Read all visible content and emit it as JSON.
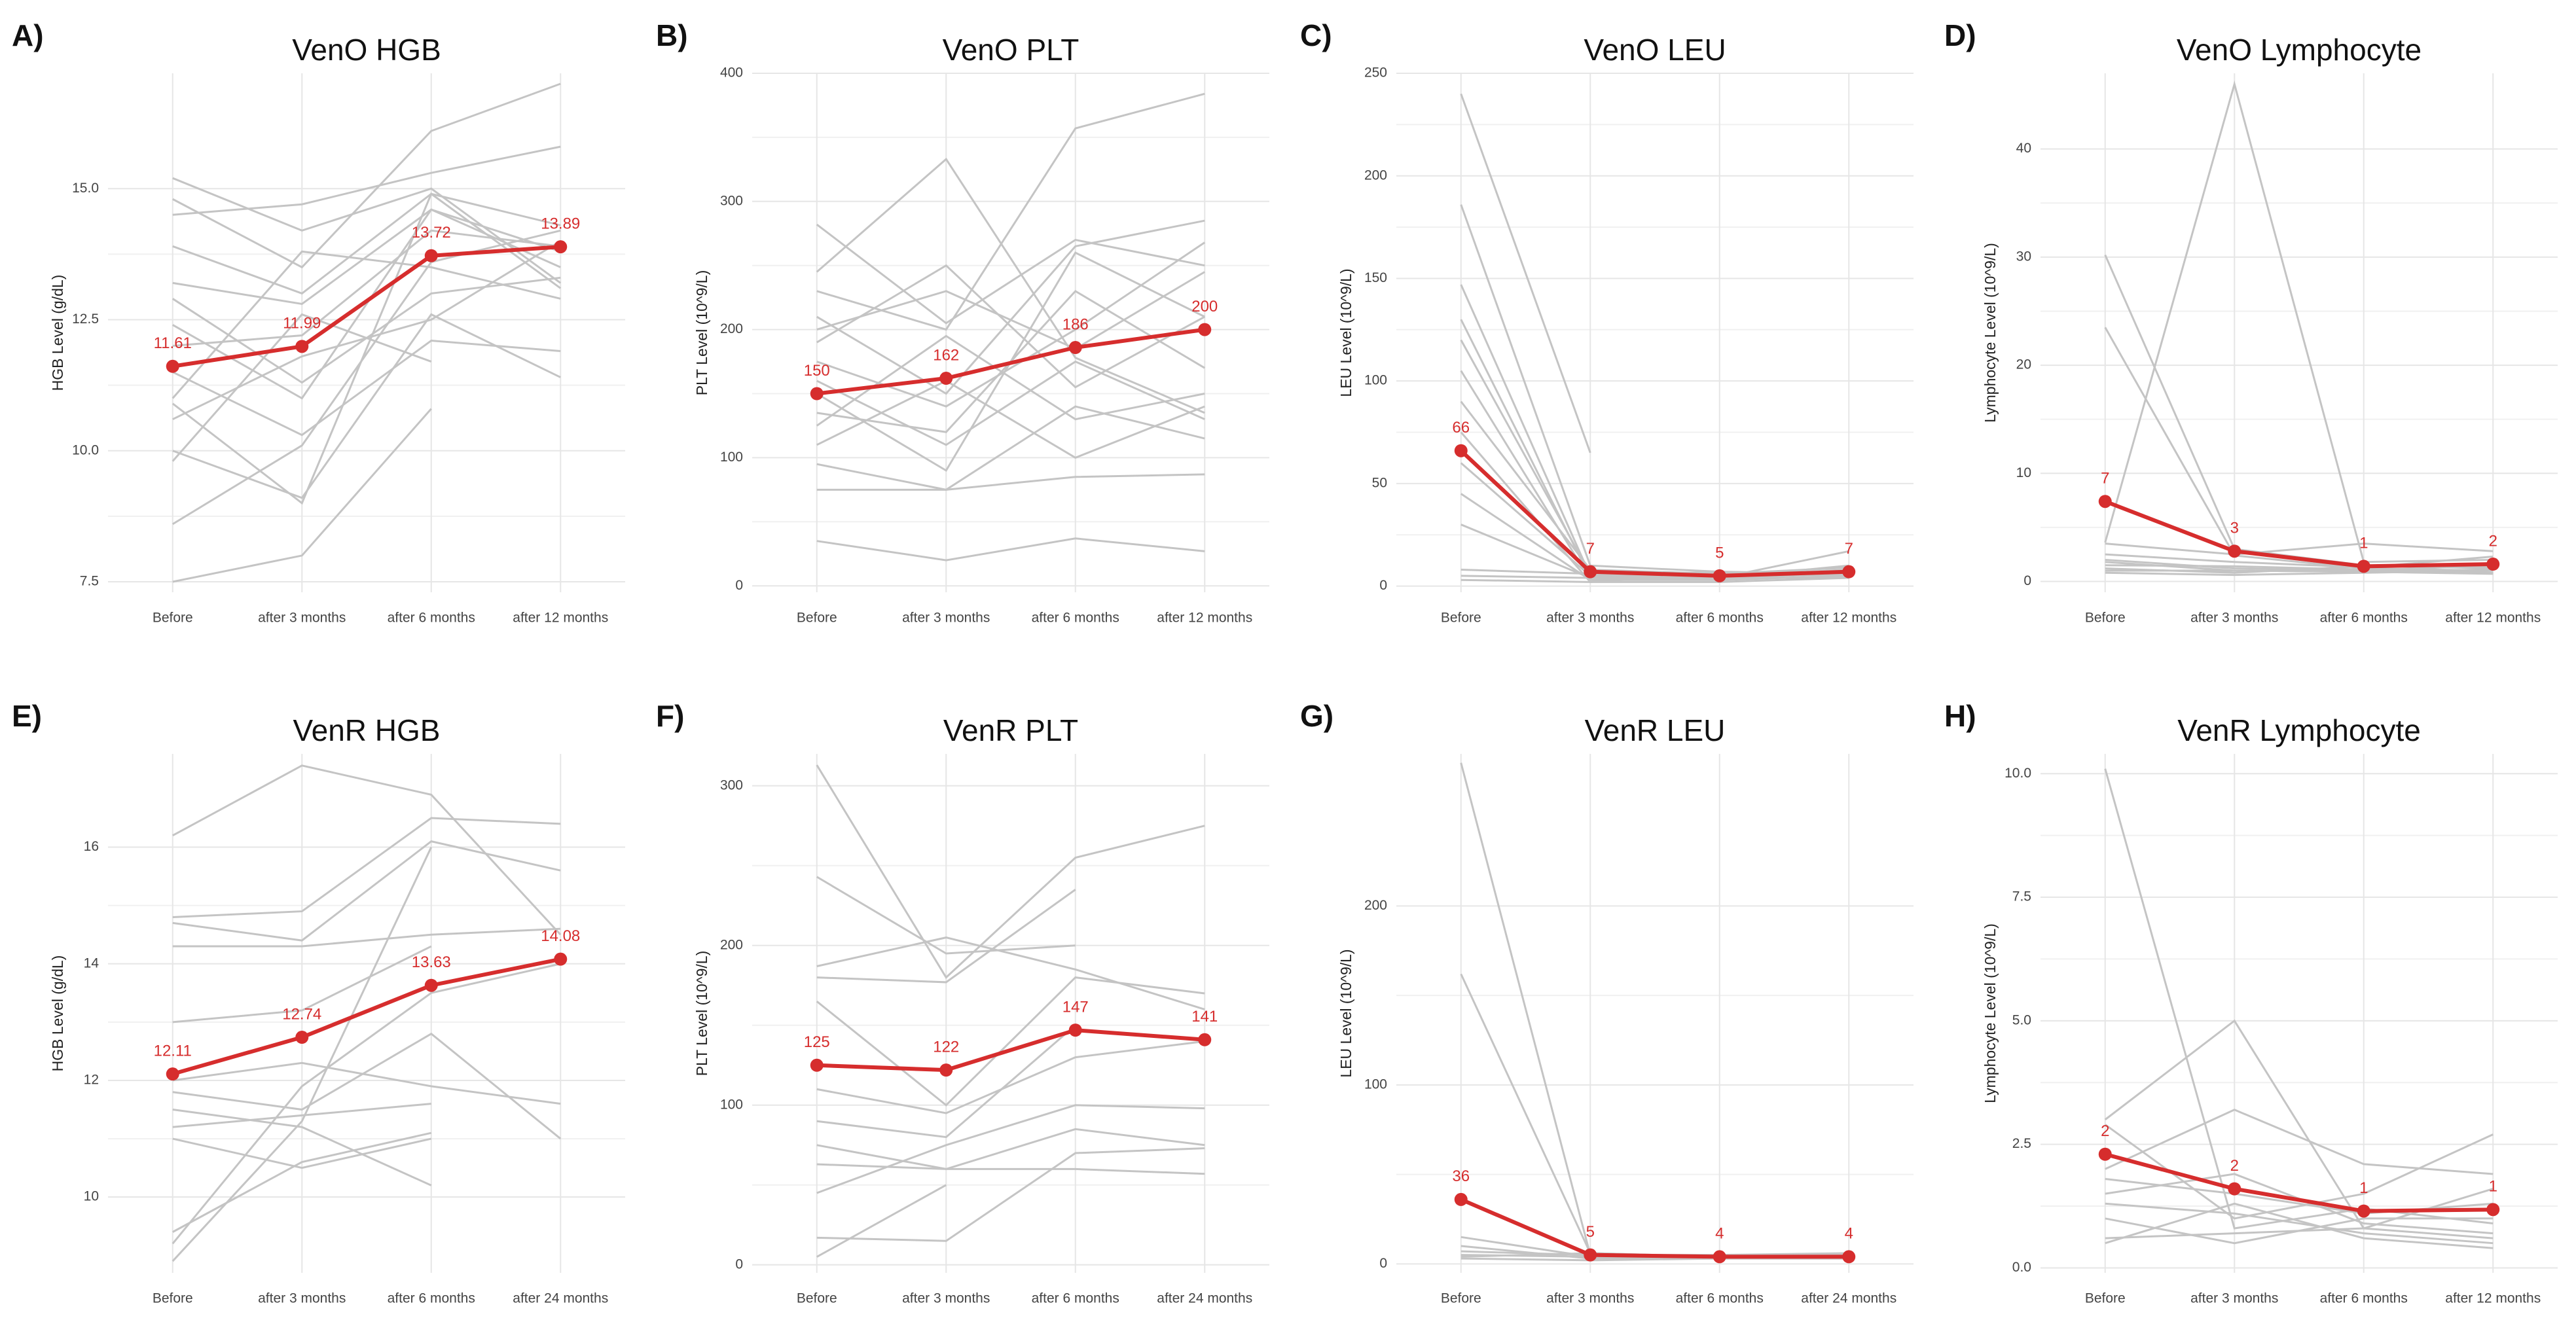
{
  "chart_data": [
    {
      "type": "line",
      "panel": "A)",
      "title": "VenO HGB",
      "y_label": "HGB Level (g/dL)",
      "categories": [
        "Before",
        "after 3 months",
        "after 6 months",
        "after 12 months"
      ],
      "ylim": [
        7.3,
        17.2
      ],
      "yticks": [
        7.5,
        {
          "value": 10,
          "label": "10.0"
        },
        12.5,
        {
          "value": 15,
          "label": "15.0"
        }
      ],
      "grid": true,
      "line_color": "#c4c4c4",
      "series": [
        {
          "values": [
            15.2,
            14.2,
            15.0,
            13.2
          ]
        },
        {
          "values": [
            14.8,
            13.5,
            16.1,
            17.0
          ]
        },
        {
          "values": [
            14.5,
            14.7,
            15.3,
            15.8
          ]
        },
        {
          "values": [
            13.9,
            13.0,
            14.9,
            14.3
          ]
        },
        {
          "values": [
            13.2,
            12.8,
            14.6,
            13.5
          ]
        },
        {
          "values": [
            12.9,
            11.3,
            13.0,
            13.3
          ]
        },
        {
          "values": [
            12.0,
            12.2,
            14.2,
            13.9
          ]
        },
        {
          "values": [
            11.5,
            10.3,
            12.1,
            11.9
          ]
        },
        {
          "values": [
            10.9,
            9.0,
            14.9,
            13.1
          ]
        },
        {
          "values": [
            10.6,
            11.8,
            12.5,
            14.0
          ]
        },
        {
          "values": [
            10.0,
            9.1,
            12.6,
            11.4
          ]
        },
        {
          "values": [
            9.8,
            12.6,
            11.7,
            null
          ]
        },
        {
          "values": [
            8.6,
            10.1,
            13.6,
            14.2
          ]
        },
        {
          "values": [
            7.5,
            8.0,
            10.8,
            null
          ]
        },
        {
          "values": [
            11.0,
            13.8,
            13.5,
            12.9
          ]
        },
        {
          "values": [
            12.4,
            11.0,
            14.6,
            13.8
          ]
        }
      ],
      "mean": {
        "color": "#d62d2d",
        "values": [
          11.61,
          11.99,
          13.72,
          13.89
        ]
      }
    },
    {
      "type": "line",
      "panel": "B)",
      "title": "VenO PLT",
      "y_label": "PLT Level (10^9/L)",
      "categories": [
        "Before",
        "after 3 months",
        "after 6 months",
        "after 12 months"
      ],
      "ylim": [
        -5,
        400
      ],
      "yticks": [
        0,
        100,
        200,
        300,
        400
      ],
      "grid": true,
      "line_color": "#c4c4c4",
      "series": [
        {
          "values": [
            282,
            205,
            270,
            250
          ]
        },
        {
          "values": [
            245,
            333,
            178,
            135
          ]
        },
        {
          "values": [
            230,
            200,
            357,
            384
          ]
        },
        {
          "values": [
            210,
            150,
            265,
            285
          ]
        },
        {
          "values": [
            190,
            250,
            155,
            210
          ]
        },
        {
          "values": [
            175,
            140,
            200,
            268
          ]
        },
        {
          "values": [
            150,
            90,
            260,
            210
          ]
        },
        {
          "values": [
            135,
            120,
            230,
            170
          ]
        },
        {
          "values": [
            125,
            195,
            130,
            150
          ]
        },
        {
          "values": [
            110,
            160,
            100,
            140
          ]
        },
        {
          "values": [
            95,
            75,
            140,
            115
          ]
        },
        {
          "values": [
            75,
            75,
            85,
            87
          ]
        },
        {
          "values": [
            35,
            20,
            37,
            27
          ]
        },
        {
          "values": [
            200,
            230,
            185,
            245
          ]
        },
        {
          "values": [
            160,
            110,
            175,
            130
          ]
        }
      ],
      "mean": {
        "color": "#d62d2d",
        "values": [
          150,
          162,
          186,
          200
        ]
      }
    },
    {
      "type": "line",
      "panel": "C)",
      "title": "VenO LEU",
      "y_label": "LEU Level (10^9/L)",
      "categories": [
        "Before",
        "after 3 months",
        "after 6 months",
        "after 12 months"
      ],
      "ylim": [
        -3,
        250
      ],
      "yticks": [
        0,
        50,
        100,
        150,
        200,
        250
      ],
      "grid": true,
      "line_color": "#c4c4c4",
      "series": [
        {
          "values": [
            240,
            65,
            null,
            null
          ]
        },
        {
          "values": [
            186,
            10,
            7,
            5
          ]
        },
        {
          "values": [
            147,
            5,
            4,
            6
          ]
        },
        {
          "values": [
            130,
            4,
            5,
            8
          ]
        },
        {
          "values": [
            120,
            6,
            4,
            17
          ]
        },
        {
          "values": [
            105,
            3,
            3,
            5
          ]
        },
        {
          "values": [
            90,
            8,
            6,
            9
          ]
        },
        {
          "values": [
            75,
            2,
            2,
            4
          ]
        },
        {
          "values": [
            60,
            5,
            7,
            6
          ]
        },
        {
          "values": [
            45,
            3,
            4,
            10
          ]
        },
        {
          "values": [
            30,
            4,
            5,
            6
          ]
        },
        {
          "values": [
            8,
            6,
            3,
            5
          ]
        },
        {
          "values": [
            5,
            4,
            4,
            4
          ]
        },
        {
          "values": [
            3,
            2,
            6,
            7
          ]
        }
      ],
      "mean": {
        "color": "#d62d2d",
        "values": [
          66,
          7,
          5,
          7
        ]
      }
    },
    {
      "type": "line",
      "panel": "D)",
      "title": "VenO Lymphocyte",
      "y_label": "Lymphocyte Level (10^9/L)",
      "categories": [
        "Before",
        "after 3 months",
        "after 6 months",
        "after 12 months"
      ],
      "ylim": [
        -1,
        47
      ],
      "yticks": [
        0,
        10,
        20,
        30,
        40
      ],
      "grid": true,
      "line_color": "#c4c4c4",
      "series": [
        {
          "values": [
            30.2,
            3,
            1.5,
            1.2
          ]
        },
        {
          "values": [
            23.5,
            2.4,
            1.2,
            1
          ]
        },
        {
          "values": [
            3.6,
            46,
            1.8,
            2
          ]
        },
        {
          "values": [
            3.5,
            2.5,
            3.5,
            2.8
          ]
        },
        {
          "values": [
            2.5,
            1.8,
            1.3,
            2.3
          ]
        },
        {
          "values": [
            2,
            1.2,
            1,
            1.5
          ]
        },
        {
          "values": [
            1.8,
            1,
            0.9,
            1.1
          ]
        },
        {
          "values": [
            1.5,
            1.4,
            1.1,
            0.8
          ]
        },
        {
          "values": [
            1.2,
            0.8,
            1.4,
            1.3
          ]
        },
        {
          "values": [
            1,
            1,
            0.9,
            0.7
          ]
        },
        {
          "values": [
            0.8,
            0.6,
            0.8,
            1.0
          ]
        }
      ],
      "mean": {
        "color": "#d62d2d",
        "values": [
          7.4,
          2.8,
          1.4,
          1.6
        ],
        "value_labels": [
          "7",
          "3",
          "1",
          "2"
        ]
      }
    },
    {
      "type": "line",
      "panel": "E)",
      "title": "VenR HGB",
      "y_label": "HGB Level (g/dL)",
      "categories": [
        "Before",
        "after 3 months",
        "after 6 months",
        "after 24 months"
      ],
      "ylim": [
        8.7,
        17.6
      ],
      "yticks": [
        10,
        12,
        14,
        16
      ],
      "grid": true,
      "line_color": "#c4c4c4",
      "series": [
        {
          "values": [
            16.2,
            17.4,
            16.9,
            14.5
          ]
        },
        {
          "values": [
            14.8,
            14.9,
            16.5,
            16.4
          ]
        },
        {
          "values": [
            14.7,
            14.4,
            16.1,
            15.6
          ]
        },
        {
          "values": [
            14.3,
            14.3,
            14.5,
            14.6
          ]
        },
        {
          "values": [
            13.0,
            13.2,
            14.3,
            null
          ]
        },
        {
          "values": [
            12.0,
            12.3,
            11.9,
            11.6
          ]
        },
        {
          "values": [
            11.8,
            11.5,
            12.8,
            11.0
          ]
        },
        {
          "values": [
            11.5,
            11.2,
            10.2,
            null
          ]
        },
        {
          "values": [
            11.2,
            11.4,
            11.6,
            null
          ]
        },
        {
          "values": [
            11.0,
            10.5,
            11.0,
            null
          ]
        },
        {
          "values": [
            9.4,
            10.6,
            11.1,
            null
          ]
        },
        {
          "values": [
            9.2,
            11.9,
            13.5,
            14.0
          ]
        },
        {
          "values": [
            8.9,
            11.3,
            16.0,
            null
          ]
        }
      ],
      "mean": {
        "color": "#d62d2d",
        "values": [
          12.11,
          12.74,
          13.63,
          14.08
        ]
      }
    },
    {
      "type": "line",
      "panel": "F)",
      "title": "VenR PLT",
      "y_label": "PLT Level (10^9/L)",
      "categories": [
        "Before",
        "after 3 months",
        "after 6 months",
        "after 24 months"
      ],
      "ylim": [
        -5,
        320
      ],
      "yticks": [
        0,
        100,
        200,
        300
      ],
      "grid": true,
      "line_color": "#c4c4c4",
      "series": [
        {
          "values": [
            313,
            180,
            255,
            275
          ]
        },
        {
          "values": [
            243,
            195,
            200,
            null
          ]
        },
        {
          "values": [
            187,
            205,
            185,
            160
          ]
        },
        {
          "values": [
            180,
            177,
            235,
            null
          ]
        },
        {
          "values": [
            165,
            100,
            180,
            170
          ]
        },
        {
          "values": [
            110,
            95,
            130,
            140
          ]
        },
        {
          "values": [
            90,
            80,
            150,
            null
          ]
        },
        {
          "values": [
            75,
            60,
            60,
            57
          ]
        },
        {
          "values": [
            63,
            60,
            85,
            75
          ]
        },
        {
          "values": [
            45,
            75,
            100,
            98
          ]
        },
        {
          "values": [
            17,
            15,
            70,
            73
          ]
        },
        {
          "values": [
            5,
            50,
            null,
            null
          ]
        }
      ],
      "mean": {
        "color": "#d62d2d",
        "values": [
          125,
          122,
          147,
          141
        ]
      }
    },
    {
      "type": "line",
      "panel": "G)",
      "title": "VenR LEU",
      "y_label": "LEU Level (10^9/L)",
      "categories": [
        "Before",
        "after 3 months",
        "after 6 months",
        "after 24 months"
      ],
      "ylim": [
        -5,
        285
      ],
      "yticks": [
        0,
        100,
        200
      ],
      "grid": true,
      "line_color": "#c4c4c4",
      "series": [
        {
          "values": [
            280,
            5,
            3,
            4
          ]
        },
        {
          "values": [
            162,
            6,
            4,
            5
          ]
        },
        {
          "values": [
            15,
            4,
            3,
            3
          ]
        },
        {
          "values": [
            10,
            3,
            4,
            4
          ]
        },
        {
          "values": [
            7,
            5,
            5,
            6
          ]
        },
        {
          "values": [
            5,
            4,
            3,
            3
          ]
        },
        {
          "values": [
            4,
            6,
            4,
            5
          ]
        },
        {
          "values": [
            3,
            2,
            3,
            4
          ]
        }
      ],
      "mean": {
        "color": "#d62d2d",
        "values": [
          36,
          5,
          4,
          4
        ]
      }
    },
    {
      "type": "line",
      "panel": "H)",
      "title": "VenR Lymphocyte",
      "y_label": "Lymphocyte Level (10^9/L)",
      "categories": [
        "Before",
        "after 3 months",
        "after 6 months",
        "after 12 months"
      ],
      "ylim": [
        -0.1,
        10.4
      ],
      "yticks": [
        {
          "value": 0,
          "label": "0.0"
        },
        2.5,
        {
          "value": 5,
          "label": "5.0"
        },
        7.5,
        {
          "value": 10,
          "label": "10.0"
        }
      ],
      "grid": true,
      "line_color": "#c4c4c4",
      "series": [
        {
          "values": [
            10.1,
            0.8,
            1.2,
            0.9
          ]
        },
        {
          "values": [
            3.0,
            5.0,
            0.8,
            0.6
          ]
        },
        {
          "values": [
            2.9,
            1.0,
            1.5,
            2.7
          ]
        },
        {
          "values": [
            2.0,
            3.2,
            2.1,
            1.9
          ]
        },
        {
          "values": [
            1.8,
            1.5,
            1.1,
            1.3
          ]
        },
        {
          "values": [
            1.5,
            1.9,
            0.9,
            0.7
          ]
        },
        {
          "values": [
            1.3,
            1.1,
            0.7,
            0.5
          ]
        },
        {
          "values": [
            1.0,
            0.5,
            1.0,
            1.0
          ]
        },
        {
          "values": [
            0.6,
            0.7,
            0.8,
            1.6
          ]
        },
        {
          "values": [
            0.5,
            1.3,
            0.6,
            0.4
          ]
        }
      ],
      "mean": {
        "color": "#d62d2d",
        "values": [
          2.3,
          1.6,
          1.15,
          1.18
        ],
        "value_labels": [
          "2",
          "2",
          "1",
          "1"
        ]
      }
    }
  ]
}
